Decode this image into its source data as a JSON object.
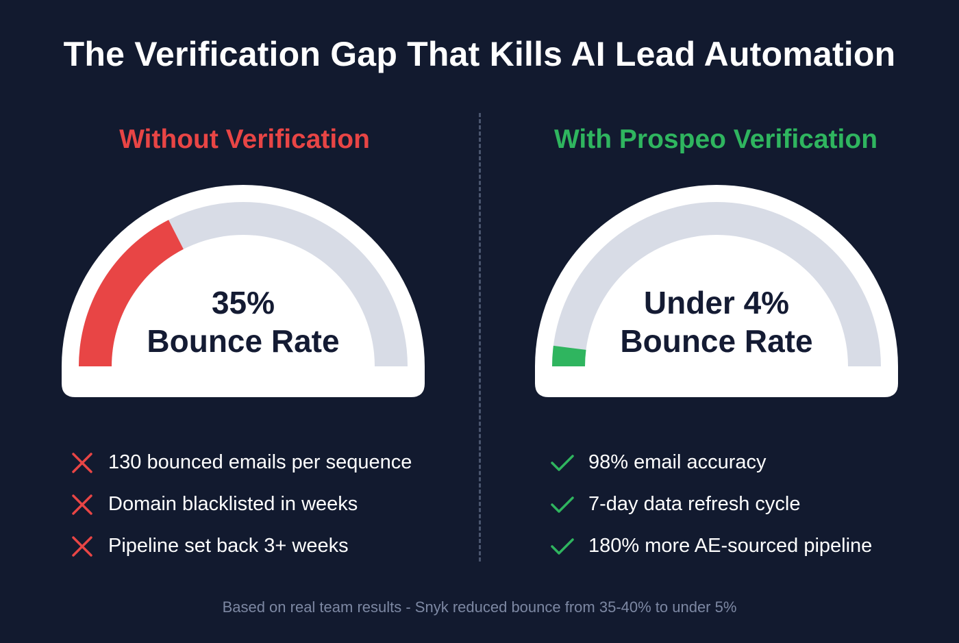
{
  "title": "The Verification Gap That Kills AI Lead Automation",
  "colors": {
    "background": "#121a2f",
    "bad": "#e84545",
    "good": "#2fb55f",
    "track": "#d8dce6",
    "card": "#ffffff",
    "text_dark": "#141b33"
  },
  "left": {
    "heading": "Without Verification",
    "value_label": "35%",
    "caption": "Bounce Rate",
    "items": [
      {
        "icon": "x-icon",
        "text": "130 bounced emails per sequence"
      },
      {
        "icon": "x-icon",
        "text": "Domain blacklisted in weeks"
      },
      {
        "icon": "x-icon",
        "text": "Pipeline set back 3+ weeks"
      }
    ]
  },
  "right": {
    "heading": "With Prospeo Verification",
    "value_label": "Under 4%",
    "caption": "Bounce Rate",
    "items": [
      {
        "icon": "check-icon",
        "text": "98% email accuracy"
      },
      {
        "icon": "check-icon",
        "text": "7-day data refresh cycle"
      },
      {
        "icon": "check-icon",
        "text": "180% more AE-sourced pipeline"
      }
    ]
  },
  "footnote": "Based on real team results - Snyk reduced bounce from 35-40% to under 5%",
  "chart_data": [
    {
      "type": "gauge",
      "range": [
        0,
        100
      ],
      "value": 35,
      "unit": "%",
      "label": "35% Bounce Rate",
      "color": "#e84545"
    },
    {
      "type": "gauge",
      "range": [
        0,
        100
      ],
      "value": 4,
      "unit": "%",
      "label": "Under 4% Bounce Rate",
      "color": "#2fb55f"
    }
  ]
}
